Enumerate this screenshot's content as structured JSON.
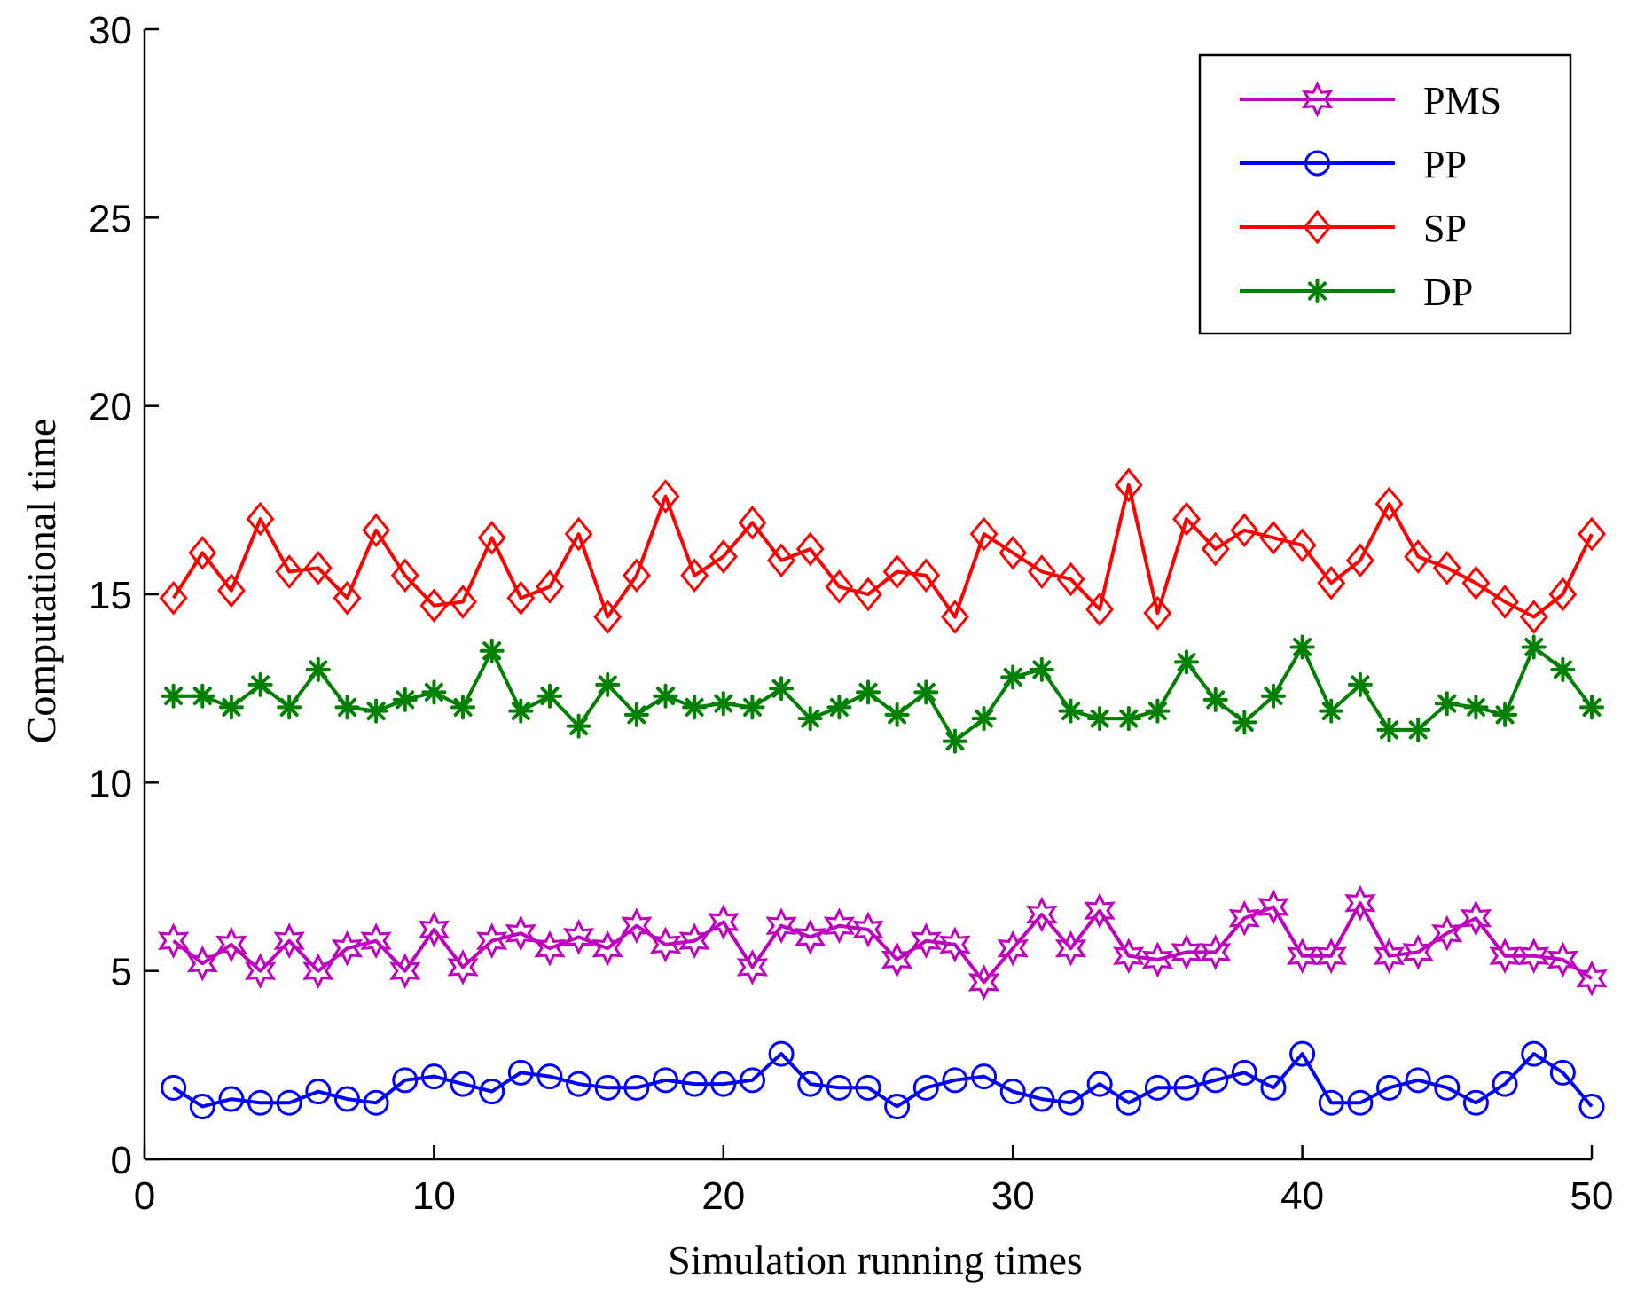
{
  "chart_data": {
    "type": "line",
    "title": "",
    "xlabel": "Simulation running times",
    "ylabel": "Computational time",
    "xlim": [
      0,
      50
    ],
    "ylim": [
      0,
      30
    ],
    "xticks": [
      0,
      10,
      20,
      30,
      40,
      50
    ],
    "yticks": [
      0,
      5,
      10,
      15,
      20,
      25,
      30
    ],
    "grid": false,
    "legend_position": "top-right",
    "x": [
      1,
      2,
      3,
      4,
      5,
      6,
      7,
      8,
      9,
      10,
      11,
      12,
      13,
      14,
      15,
      16,
      17,
      18,
      19,
      20,
      21,
      22,
      23,
      24,
      25,
      26,
      27,
      28,
      29,
      30,
      31,
      32,
      33,
      34,
      35,
      36,
      37,
      38,
      39,
      40,
      41,
      42,
      43,
      44,
      45,
      46,
      47,
      48,
      49,
      50
    ],
    "series": [
      {
        "name": "PMS",
        "color": "#bf00bf",
        "marker": "hexagram",
        "values": [
          5.8,
          5.2,
          5.7,
          5.0,
          5.8,
          5.0,
          5.6,
          5.8,
          5.0,
          6.1,
          5.1,
          5.8,
          6.0,
          5.6,
          5.9,
          5.6,
          6.2,
          5.7,
          5.8,
          6.3,
          5.1,
          6.2,
          5.9,
          6.2,
          6.1,
          5.3,
          5.8,
          5.7,
          4.7,
          5.6,
          6.5,
          5.6,
          6.6,
          5.4,
          5.3,
          5.5,
          5.5,
          6.4,
          6.7,
          5.4,
          5.4,
          6.8,
          5.4,
          5.5,
          6.0,
          6.4,
          5.4,
          5.4,
          5.3,
          4.8
        ]
      },
      {
        "name": "PP",
        "color": "#0000ff",
        "marker": "circle",
        "values": [
          1.9,
          1.4,
          1.6,
          1.5,
          1.5,
          1.8,
          1.6,
          1.5,
          2.1,
          2.2,
          2.0,
          1.8,
          2.3,
          2.2,
          2.0,
          1.9,
          1.9,
          2.1,
          2.0,
          2.0,
          2.1,
          2.8,
          2.0,
          1.9,
          1.9,
          1.4,
          1.9,
          2.1,
          2.2,
          1.8,
          1.6,
          1.5,
          2.0,
          1.5,
          1.9,
          1.9,
          2.1,
          2.3,
          1.9,
          2.8,
          1.5,
          1.5,
          1.9,
          2.1,
          1.9,
          1.5,
          2.0,
          2.8,
          2.3,
          1.4
        ]
      },
      {
        "name": "SP",
        "color": "#ff0000",
        "marker": "diamond",
        "values": [
          14.9,
          16.1,
          15.1,
          17.0,
          15.6,
          15.7,
          14.9,
          16.7,
          15.5,
          14.7,
          14.8,
          16.5,
          14.9,
          15.2,
          16.6,
          14.4,
          15.5,
          17.6,
          15.5,
          16.0,
          16.9,
          15.9,
          16.2,
          15.2,
          15.0,
          15.6,
          15.5,
          14.4,
          16.6,
          16.1,
          15.6,
          15.4,
          14.6,
          17.9,
          14.5,
          17.0,
          16.2,
          16.7,
          16.5,
          16.3,
          15.3,
          15.9,
          17.4,
          16.0,
          15.7,
          15.3,
          14.8,
          14.4,
          15.0,
          16.6
        ]
      },
      {
        "name": "DP",
        "color": "#008000",
        "marker": "asterisk",
        "values": [
          12.3,
          12.3,
          12.0,
          12.6,
          12.0,
          13.0,
          12.0,
          11.9,
          12.2,
          12.4,
          12.0,
          13.5,
          11.9,
          12.3,
          11.5,
          12.6,
          11.8,
          12.3,
          12.0,
          12.1,
          12.0,
          12.5,
          11.7,
          12.0,
          12.4,
          11.8,
          12.4,
          11.1,
          11.7,
          12.8,
          13.0,
          11.9,
          11.7,
          11.7,
          11.9,
          13.2,
          12.2,
          11.6,
          12.3,
          13.6,
          11.9,
          12.6,
          11.4,
          11.4,
          12.1,
          12.0,
          11.8,
          13.6,
          13.0,
          12.0
        ]
      }
    ]
  }
}
